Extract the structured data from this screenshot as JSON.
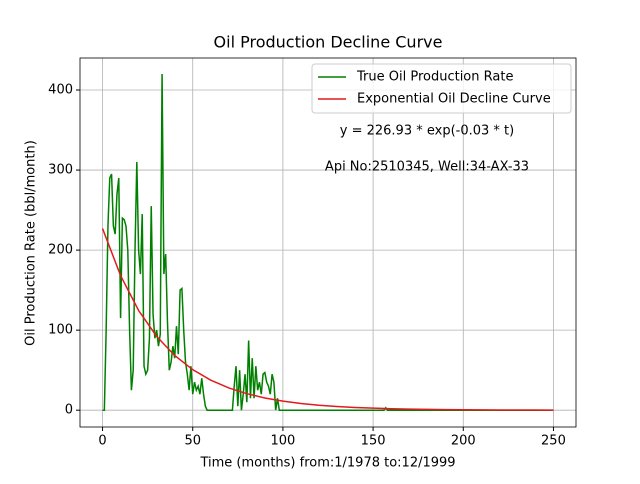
{
  "chart_data": {
    "type": "line",
    "title": "Oil Production Decline Curve",
    "xlabel": "Time (months) from:1/1978 to:12/1999",
    "ylabel": "Oil Production Rate (bbl/month)",
    "annotations": [
      "y = 226.93 * exp(-0.03 * t)",
      "Api No:2510345, Well:34-AX-33"
    ],
    "xlim": [
      -12.5,
      262.5
    ],
    "ylim": [
      -21,
      440
    ],
    "xticks": [
      0,
      50,
      100,
      150,
      200,
      250
    ],
    "yticks": [
      0,
      100,
      200,
      300,
      400
    ],
    "grid": true,
    "legend": "upper right",
    "series": [
      {
        "name": "True Oil Production Rate",
        "color": "#008000",
        "x": [
          0,
          1,
          2,
          3,
          4,
          5,
          6,
          7,
          8,
          9,
          10,
          11,
          12,
          13,
          14,
          15,
          16,
          17,
          18,
          19,
          20,
          21,
          22,
          23,
          24,
          25,
          26,
          27,
          28,
          29,
          30,
          31,
          32,
          33,
          34,
          35,
          36,
          37,
          38,
          39,
          40,
          41,
          42,
          43,
          44,
          45,
          46,
          47,
          48,
          49,
          50,
          51,
          52,
          53,
          54,
          55,
          56,
          57,
          58,
          72,
          73,
          74,
          75,
          76,
          77,
          78,
          79,
          80,
          81,
          82,
          83,
          84,
          85,
          86,
          87,
          88,
          89,
          90,
          91,
          92,
          93,
          94,
          95,
          96,
          97,
          98,
          156,
          157,
          158,
          250
        ],
        "values": [
          0,
          0,
          100,
          230,
          290,
          295,
          230,
          220,
          270,
          290,
          115,
          240,
          238,
          230,
          200,
          100,
          25,
          50,
          200,
          310,
          200,
          170,
          245,
          55,
          45,
          50,
          90,
          255,
          120,
          90,
          100,
          80,
          95,
          420,
          170,
          195,
          110,
          50,
          60,
          80,
          65,
          105,
          70,
          150,
          152,
          100,
          60,
          45,
          25,
          55,
          20,
          35,
          25,
          30,
          20,
          40,
          20,
          5,
          0,
          0,
          30,
          55,
          5,
          50,
          0,
          20,
          45,
          10,
          87,
          15,
          65,
          15,
          55,
          25,
          35,
          20,
          45,
          47,
          35,
          30,
          20,
          45,
          35,
          0,
          15,
          0,
          0,
          3,
          0,
          0
        ]
      },
      {
        "name": "Exponential Oil Decline Curve",
        "color": "#e41a1c",
        "x": [
          0,
          10,
          20,
          30,
          40,
          50,
          60,
          70,
          80,
          90,
          100,
          110,
          120,
          130,
          140,
          150,
          160,
          170,
          180,
          190,
          200,
          210,
          220,
          230,
          240,
          250
        ],
        "values": [
          226.93,
          168.11,
          124.54,
          92.26,
          68.35,
          50.64,
          37.51,
          27.79,
          20.59,
          15.25,
          11.3,
          8.37,
          6.2,
          4.59,
          3.4,
          2.52,
          1.87,
          1.38,
          1.03,
          0.76,
          0.56,
          0.42,
          0.31,
          0.23,
          0.17,
          0.13
        ]
      }
    ]
  }
}
